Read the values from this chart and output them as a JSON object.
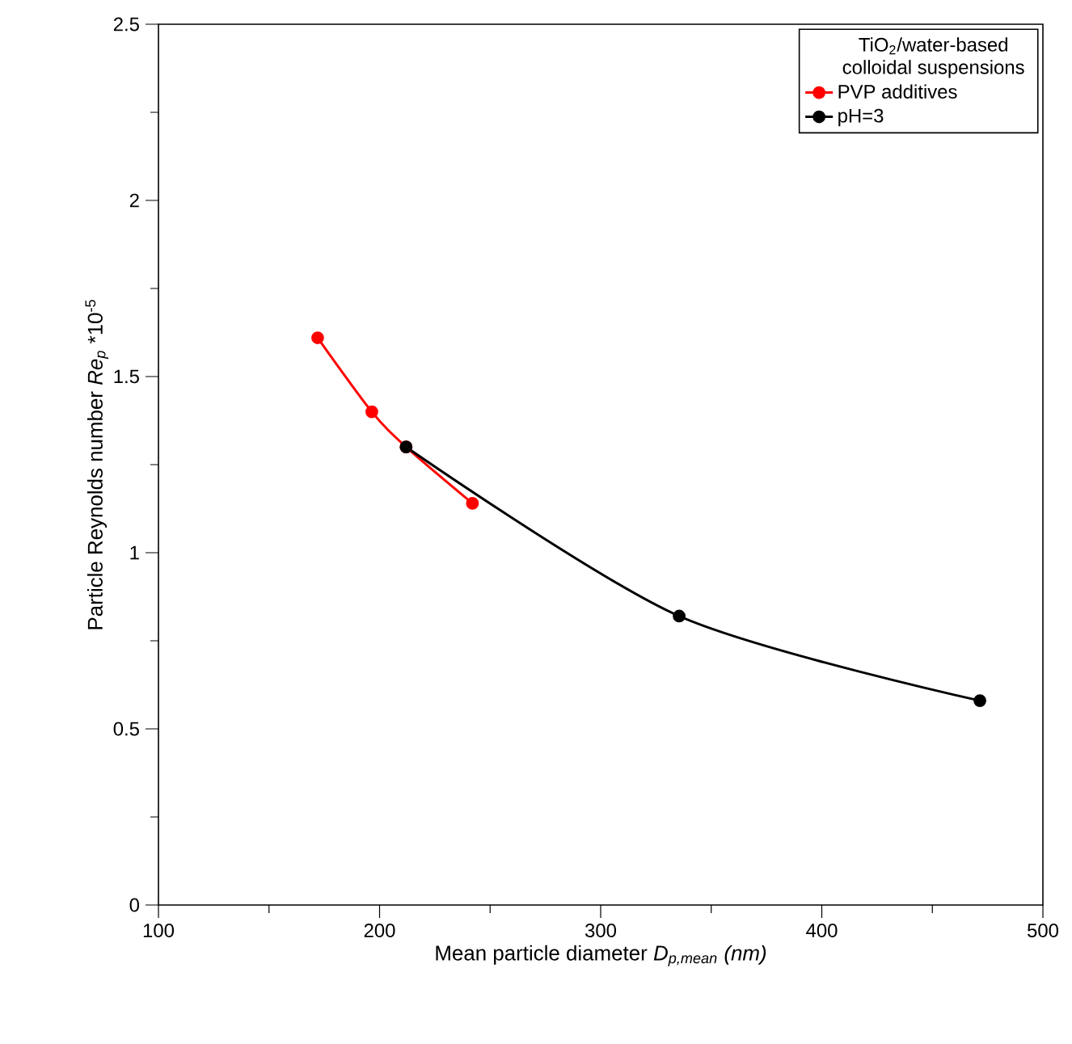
{
  "chart_data": {
    "type": "line",
    "xlabel": "Mean particle diameter *D$_{p,mean}$ (nm)*",
    "ylabel": "Particle Reynolds number *Re$_{p}$* *10$^{-5}$",
    "legend_title": "TiO$_{2}$/water-based colloidal suspensions",
    "series": [
      {
        "name": "PVP additives",
        "color": "#ff0000",
        "x": [
          172,
          196.5,
          212,
          242
        ],
        "values": [
          1.61,
          1.4,
          1.3,
          1.14
        ]
      },
      {
        "name": "pH=3",
        "color": "#000000",
        "x": [
          212,
          335.5,
          471.5
        ],
        "values": [
          1.3,
          0.82,
          0.58
        ]
      }
    ],
    "xlim": [
      100,
      500
    ],
    "xticks": [
      100,
      200,
      300,
      400,
      500
    ],
    "ylim": [
      0,
      2.5
    ],
    "yticks": [
      0,
      0.5,
      1,
      1.5,
      2,
      2.5
    ],
    "marker": "circle",
    "line_style": "solid",
    "legend": "top right",
    "grid": false
  }
}
